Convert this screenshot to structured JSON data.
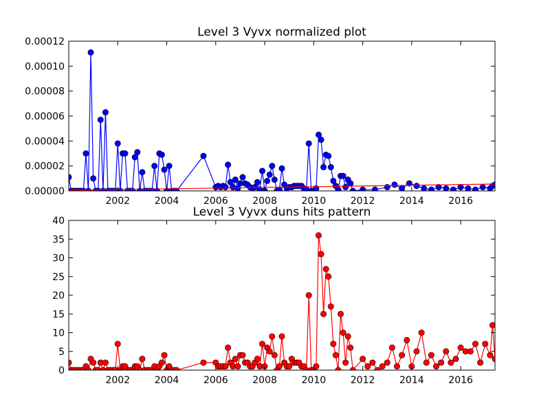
{
  "chart_data": [
    {
      "type": "line",
      "title": "Level 3 Vyvx normalized plot",
      "xlabel": "",
      "ylabel": "",
      "xlim": [
        2000.0,
        2017.4
      ],
      "ylim": [
        0,
        0.00012
      ],
      "x_ticks": [
        "2002",
        "2004",
        "2006",
        "2008",
        "2010",
        "2012",
        "2014",
        "2016"
      ],
      "y_ticks": [
        "0.00000",
        "0.00002",
        "0.00004",
        "0.00006",
        "0.00008",
        "0.00010",
        "0.00012"
      ],
      "grid": false,
      "marker": "circle",
      "color": "#0000ff",
      "trend_color": "#ff0000",
      "trend_line": {
        "x": [
          2000.0,
          2017.4
        ],
        "y": [
          5e-07,
          5.5e-06
        ]
      },
      "series": [
        {
          "x": [
            2000.0,
            2000.1,
            2000.2,
            2000.3,
            2000.4,
            2000.5,
            2000.6,
            2000.7,
            2000.8,
            2000.9,
            2001.0,
            2001.1,
            2001.2,
            2001.3,
            2001.4,
            2001.5,
            2001.6,
            2001.7,
            2001.8,
            2001.9,
            2002.0,
            2002.1,
            2002.2,
            2002.3,
            2002.4,
            2002.5,
            2002.6,
            2002.7,
            2002.8,
            2002.9,
            2003.0,
            2003.1,
            2003.2,
            2003.3,
            2003.4,
            2003.5,
            2003.6,
            2003.7,
            2003.8,
            2003.9,
            2004.0,
            2004.1,
            2004.2,
            2004.3,
            2004.4,
            2005.5,
            2006.0,
            2006.1,
            2006.2,
            2006.3,
            2006.4,
            2006.5,
            2006.6,
            2006.7,
            2006.8,
            2006.9,
            2007.0,
            2007.1,
            2007.2,
            2007.3,
            2007.4,
            2007.5,
            2007.6,
            2007.7,
            2007.8,
            2007.9,
            2008.0,
            2008.1,
            2008.2,
            2008.3,
            2008.4,
            2008.5,
            2008.6,
            2008.7,
            2008.8,
            2008.9,
            2009.0,
            2009.1,
            2009.2,
            2009.3,
            2009.4,
            2009.5,
            2009.6,
            2009.7,
            2009.8,
            2009.9,
            2010.0,
            2010.1,
            2010.2,
            2010.3,
            2010.4,
            2010.5,
            2010.6,
            2010.7,
            2010.8,
            2010.9,
            2011.0,
            2011.1,
            2011.2,
            2011.3,
            2011.4,
            2011.5,
            2011.6,
            2012.0,
            2012.5,
            2013.0,
            2013.3,
            2013.6,
            2013.9,
            2014.2,
            2014.5,
            2014.8,
            2015.1,
            2015.4,
            2015.7,
            2016.0,
            2016.3,
            2016.6,
            2016.9,
            2017.2,
            2017.3,
            2017.4
          ],
          "y": [
            1.1e-05,
            0,
            0,
            0,
            0,
            0,
            0,
            3e-05,
            0,
            0.000111,
            1e-05,
            0,
            0,
            5.7e-05,
            0,
            6.3e-05,
            0,
            0,
            0,
            0,
            3.8e-05,
            0,
            3e-05,
            3e-05,
            0,
            0,
            0,
            2.7e-05,
            3.1e-05,
            0,
            1.5e-05,
            0,
            0,
            0,
            0,
            2e-05,
            0,
            3e-05,
            2.9e-05,
            1.7e-05,
            0,
            2e-05,
            0,
            0,
            0,
            2.8e-05,
            3e-06,
            4e-06,
            3e-06,
            4e-06,
            3e-06,
            2.1e-05,
            7e-06,
            3e-06,
            9e-06,
            2e-06,
            6e-06,
            1.1e-05,
            6e-06,
            5e-06,
            3e-06,
            2e-06,
            3e-06,
            7e-06,
            1e-06,
            1.6e-05,
            0,
            8e-06,
            1.3e-05,
            2e-05,
            9e-06,
            0,
            1e-06,
            1.8e-05,
            5e-06,
            2e-06,
            3e-06,
            3e-06,
            4e-06,
            4e-06,
            4e-06,
            4e-06,
            2e-06,
            1e-06,
            3.8e-05,
            0,
            0,
            2e-06,
            4.5e-05,
            4.1e-05,
            1.9e-05,
            2.9e-05,
            2.8e-05,
            1.9e-05,
            8e-06,
            4e-06,
            1e-06,
            1.2e-05,
            1.2e-05,
            3e-06,
            9e-06,
            6e-06,
            0,
            1e-06,
            1e-06,
            3e-06,
            5e-06,
            2e-06,
            6e-06,
            4e-06,
            2e-06,
            1e-06,
            3e-06,
            2e-06,
            1e-06,
            3e-06,
            2e-06,
            1e-06,
            3e-06,
            2e-06,
            4e-06,
            5e-06
          ]
        }
      ]
    },
    {
      "type": "line",
      "title": "Level 3 Vyvx duns hits pattern",
      "xlabel": "",
      "ylabel": "",
      "xlim": [
        2000.0,
        2017.4
      ],
      "ylim": [
        0,
        40
      ],
      "x_ticks": [
        "2002",
        "2004",
        "2006",
        "2008",
        "2010",
        "2012",
        "2014",
        "2016"
      ],
      "y_ticks": [
        "0",
        "5",
        "10",
        "15",
        "20",
        "25",
        "30",
        "35",
        "40"
      ],
      "grid": false,
      "marker": "circle",
      "color": "#ff0000",
      "series": [
        {
          "x": [
            2000.0,
            2000.1,
            2000.2,
            2000.3,
            2000.4,
            2000.5,
            2000.6,
            2000.7,
            2000.8,
            2000.9,
            2001.0,
            2001.1,
            2001.2,
            2001.3,
            2001.4,
            2001.5,
            2001.6,
            2001.7,
            2001.8,
            2001.9,
            2002.0,
            2002.1,
            2002.2,
            2002.3,
            2002.4,
            2002.5,
            2002.6,
            2002.7,
            2002.8,
            2002.9,
            2003.0,
            2003.1,
            2003.2,
            2003.3,
            2003.4,
            2003.5,
            2003.6,
            2003.7,
            2003.8,
            2003.9,
            2004.0,
            2004.1,
            2004.2,
            2004.3,
            2004.4,
            2005.5,
            2006.0,
            2006.1,
            2006.2,
            2006.3,
            2006.4,
            2006.5,
            2006.6,
            2006.7,
            2006.8,
            2006.9,
            2007.0,
            2007.1,
            2007.2,
            2007.3,
            2007.4,
            2007.5,
            2007.6,
            2007.7,
            2007.8,
            2007.9,
            2008.0,
            2008.1,
            2008.2,
            2008.3,
            2008.4,
            2008.5,
            2008.6,
            2008.7,
            2008.8,
            2008.9,
            2009.0,
            2009.1,
            2009.2,
            2009.3,
            2009.4,
            2009.5,
            2009.6,
            2009.7,
            2009.8,
            2009.9,
            2010.0,
            2010.1,
            2010.2,
            2010.3,
            2010.4,
            2010.5,
            2010.6,
            2010.7,
            2010.8,
            2010.9,
            2011.0,
            2011.1,
            2011.2,
            2011.3,
            2011.4,
            2011.5,
            2011.6,
            2012.0,
            2012.2,
            2012.4,
            2012.6,
            2012.8,
            2013.0,
            2013.2,
            2013.4,
            2013.6,
            2013.8,
            2014.0,
            2014.2,
            2014.4,
            2014.6,
            2014.8,
            2015.0,
            2015.2,
            2015.4,
            2015.6,
            2015.8,
            2016.0,
            2016.2,
            2016.4,
            2016.6,
            2016.8,
            2017.0,
            2017.2,
            2017.3,
            2017.4
          ],
          "y": [
            2,
            0,
            0,
            0,
            0,
            0,
            0,
            1,
            0,
            3,
            2,
            0,
            0,
            2,
            0,
            2,
            0,
            0,
            0,
            0,
            7,
            0,
            1,
            1,
            0,
            0,
            0,
            1,
            1,
            0,
            3,
            0,
            0,
            0,
            0,
            1,
            0,
            1,
            2,
            4,
            0,
            1,
            0,
            0,
            0,
            2,
            2,
            1,
            1,
            1,
            1,
            6,
            2,
            1,
            3,
            1,
            4,
            4,
            2,
            2,
            1,
            1,
            2,
            3,
            1,
            7,
            1,
            6,
            5,
            9,
            4,
            0,
            1,
            9,
            2,
            1,
            1,
            3,
            2,
            2,
            2,
            1,
            1,
            0,
            20,
            0,
            0,
            1,
            36,
            31,
            15,
            27,
            25,
            17,
            7,
            4,
            0,
            15,
            10,
            2,
            9,
            6,
            0,
            3,
            1,
            2,
            0,
            1,
            2,
            6,
            1,
            4,
            8,
            1,
            5,
            10,
            2,
            4,
            1,
            2,
            5,
            2,
            3,
            6,
            5,
            5,
            7,
            2,
            7,
            4,
            12,
            3
          ]
        }
      ]
    }
  ]
}
